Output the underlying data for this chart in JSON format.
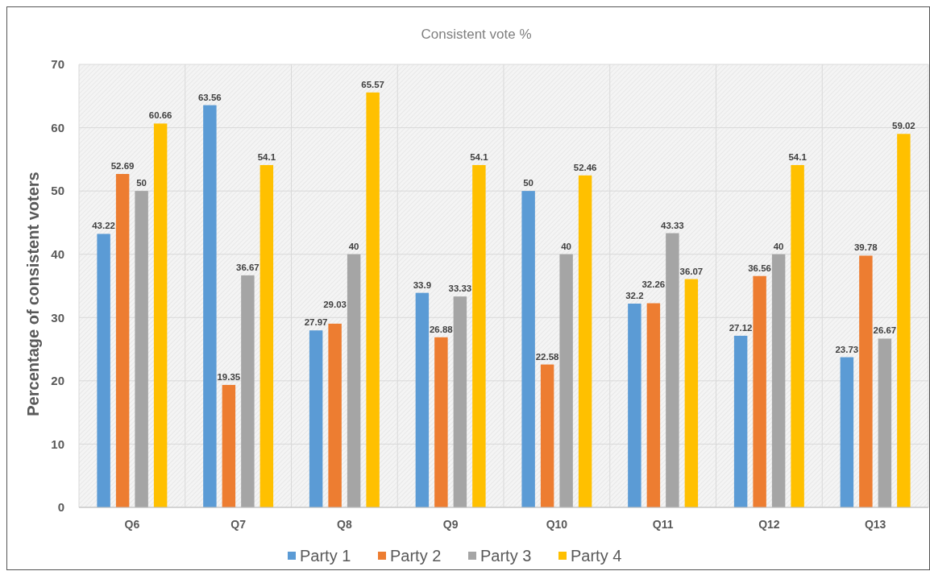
{
  "chart_data": {
    "type": "bar",
    "title": "Consistent vote %",
    "ylabel": "Percentage of consistent voters",
    "categories": [
      "Q6",
      "Q7",
      "Q8",
      "Q9",
      "Q10",
      "Q11",
      "Q12",
      "Q13"
    ],
    "series": [
      {
        "name": "Party 1",
        "color": "#5b9bd5",
        "values": [
          43.22,
          63.56,
          27.97,
          33.9,
          50,
          32.2,
          27.12,
          23.73
        ]
      },
      {
        "name": "Party 2",
        "color": "#ed7d31",
        "values": [
          52.69,
          19.35,
          29.03,
          26.88,
          22.58,
          32.26,
          36.56,
          39.78
        ]
      },
      {
        "name": "Party 3",
        "color": "#a5a5a5",
        "values": [
          50,
          36.67,
          40,
          33.33,
          40,
          43.33,
          40,
          26.67
        ]
      },
      {
        "name": "Party 4",
        "color": "#ffc000",
        "values": [
          60.66,
          54.1,
          65.57,
          54.1,
          52.46,
          36.07,
          54.1,
          59.02
        ]
      }
    ],
    "ylim": [
      0,
      70
    ],
    "yticks": [
      0,
      10,
      20,
      30,
      40,
      50,
      60,
      70
    ],
    "grid": true,
    "legend": "bottom",
    "data_labels": true
  }
}
